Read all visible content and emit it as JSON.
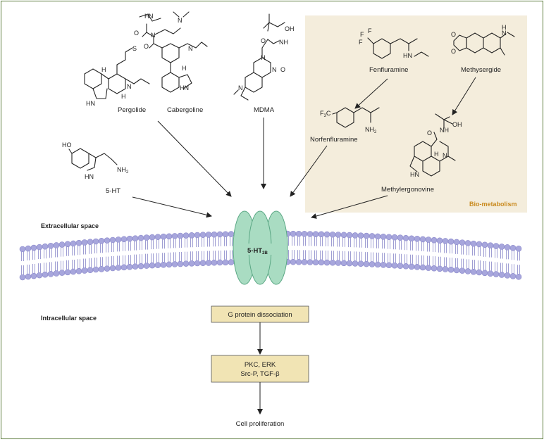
{
  "colors": {
    "frame": "#5a7a3a",
    "bio_bg": "#f4eddc",
    "bio_label": "#c98a1e",
    "membrane": "#a7a6dc",
    "membrane_dark": "#8886c9",
    "receptor": "#a9dcc2",
    "receptor_stroke": "#5aa784",
    "box_fill": "#f1e4b4",
    "box_stroke": "#555555"
  },
  "compounds": {
    "pergolide": "Pergolide",
    "cabergoline": "Cabergoline",
    "mdma": "MDMA",
    "fenfluramine": "Fenfluramine",
    "methysergide": "Methysergide",
    "norfenfluramine": "Norfenfluramine",
    "methylergonovine": "Methylergonovine",
    "serotonin": "5-HT"
  },
  "atoms": {
    "hn": "HN",
    "nh": "NH",
    "n": "N",
    "h": "H",
    "o": "O",
    "oh": "OH",
    "s": "S",
    "ho": "HO",
    "nh2": "NH",
    "sub2": "2",
    "f": "F",
    "f3c": "F",
    "f3c_sub": "3",
    "f3c_c": "C"
  },
  "bio_metabolism_label": "Bio-metabolism",
  "regions": {
    "extracellular": "Extracellular space",
    "intracellular": "Intracellular space"
  },
  "receptor": {
    "label": "5-HT",
    "subscript": "2B"
  },
  "pathway": {
    "step1": "G protein dissociation",
    "step2_line1": "PKC, ERK",
    "step2_line2": "Src-P, TGF-β",
    "outcome": "Cell proliferation"
  }
}
